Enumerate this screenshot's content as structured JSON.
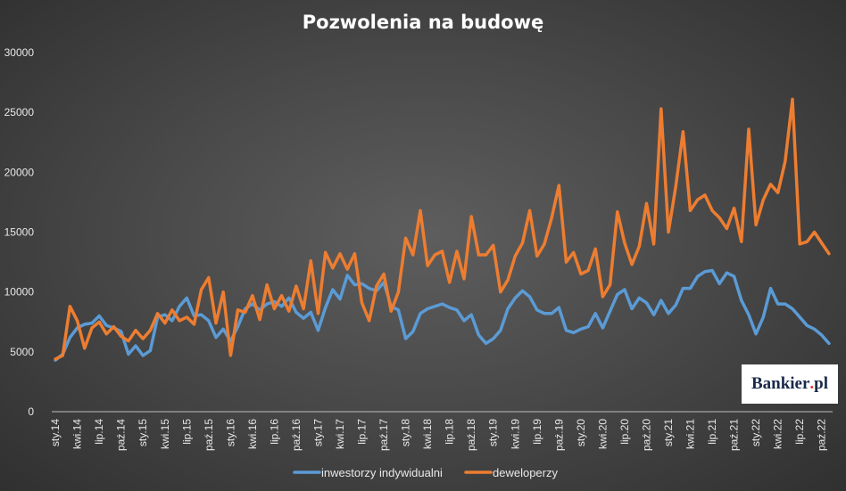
{
  "chart_data": {
    "type": "line",
    "title": "Pozwolenia na budowę",
    "xlabel": "",
    "ylabel": "",
    "ylim": [
      0,
      30000
    ],
    "yticks": [
      "0",
      "5000",
      "10000",
      "15000",
      "20000",
      "25000",
      "30000"
    ],
    "grid": false,
    "legend_position": "bottom",
    "x": [
      "sty.14",
      "lut.14",
      "mar.14",
      "kwi.14",
      "maj.14",
      "cze.14",
      "lip.14",
      "sie.14",
      "wrz.14",
      "paź.14",
      "lis.14",
      "gru.14",
      "sty.15",
      "lut.15",
      "mar.15",
      "kwi.15",
      "maj.15",
      "cze.15",
      "lip.15",
      "sie.15",
      "wrz.15",
      "paź.15",
      "lis.15",
      "gru.15",
      "sty.16",
      "lut.16",
      "mar.16",
      "kwi.16",
      "maj.16",
      "cze.16",
      "lip.16",
      "sie.16",
      "wrz.16",
      "paź.16",
      "lis.16",
      "gru.16",
      "sty.17",
      "lut.17",
      "mar.17",
      "kwi.17",
      "maj.17",
      "cze.17",
      "lip.17",
      "sie.17",
      "wrz.17",
      "paź.17",
      "lis.17",
      "gru.17",
      "sty.18",
      "lut.18",
      "mar.18",
      "kwi.18",
      "maj.18",
      "cze.18",
      "lip.18",
      "sie.18",
      "wrz.18",
      "paź.18",
      "lis.18",
      "gru.18",
      "sty.19",
      "lut.19",
      "mar.19",
      "kwi.19",
      "maj.19",
      "cze.19",
      "lip.19",
      "sie.19",
      "wrz.19",
      "paź.19",
      "lis.19",
      "gru.19",
      "sty.20",
      "lut.20",
      "mar.20",
      "kwi.20",
      "maj.20",
      "cze.20",
      "lip.20",
      "sie.20",
      "wrz.20",
      "paź.20",
      "lis.20",
      "gru.20",
      "sty.21",
      "lut.21",
      "mar.21",
      "kwi.21",
      "maj.21",
      "cze.21",
      "lip.21",
      "sie.21",
      "wrz.21",
      "paź.21",
      "lis.21",
      "gru.21",
      "sty.22",
      "lut.22",
      "mar.22",
      "kwi.22",
      "maj.22",
      "cze.22",
      "lip.22",
      "sie.22",
      "wrz.22",
      "paź.22",
      "lis.22"
    ],
    "x_tick_labels": [
      "sty.14",
      "kwi.14",
      "lip.14",
      "paź.14",
      "sty.15",
      "kwi.15",
      "lip.15",
      "paź.15",
      "sty.16",
      "kwi.16",
      "lip.16",
      "paź.16",
      "sty.17",
      "kwi.17",
      "lip.17",
      "paź.17",
      "sty.18",
      "kwi.18",
      "lip.18",
      "paź.18",
      "sty.19",
      "kwi.19",
      "lip.19",
      "paź.19",
      "sty.20",
      "kwi.20",
      "lip.20",
      "paź.20",
      "sty.21",
      "kwi.21",
      "lip.21",
      "paź.21",
      "sty.22",
      "kwi.22",
      "lip.22",
      "paź.22"
    ],
    "series": [
      {
        "name": "inwestorzy indywidualni",
        "color": "#5b9bd5",
        "values": [
          4300,
          4800,
          6200,
          7000,
          7300,
          7400,
          8000,
          7200,
          7000,
          6700,
          4800,
          5500,
          4700,
          5100,
          7900,
          8100,
          7600,
          8800,
          9500,
          8000,
          8100,
          7600,
          6200,
          6900,
          5900,
          7100,
          8600,
          9000,
          8500,
          9000,
          9200,
          8800,
          9500,
          8300,
          7800,
          8300,
          6800,
          8700,
          10200,
          9400,
          11400,
          10600,
          10700,
          10300,
          10100,
          10800,
          8800,
          8500,
          6100,
          6700,
          8200,
          8600,
          8800,
          9000,
          8700,
          8500,
          7600,
          8100,
          6400,
          5700,
          6100,
          6800,
          8600,
          9500,
          10100,
          9600,
          8500,
          8200,
          8200,
          8700,
          6800,
          6600,
          6900,
          7100,
          8200,
          7000,
          8400,
          9800,
          10200,
          8600,
          9500,
          9100,
          8100,
          9300,
          8200,
          8900,
          10300,
          10300,
          11300,
          11700,
          11800,
          10700,
          11600,
          11300,
          9300,
          8100,
          6500,
          7900,
          10300,
          9000,
          9000,
          8600,
          7900,
          7200,
          6900,
          6400,
          5700
        ]
      },
      {
        "name": "deweloperzy",
        "color": "#ed7d31",
        "values": [
          4400,
          4700,
          8800,
          7600,
          5300,
          7000,
          7500,
          6500,
          7100,
          6300,
          5900,
          6800,
          6100,
          6800,
          8200,
          7400,
          8500,
          7600,
          7900,
          7300,
          10200,
          11200,
          7400,
          10000,
          4700,
          8500,
          8300,
          9700,
          7700,
          10600,
          8600,
          9700,
          8400,
          10500,
          8600,
          12600,
          8200,
          13300,
          12000,
          13200,
          11900,
          13200,
          9100,
          7600,
          10500,
          11500,
          8400,
          10000,
          14500,
          13100,
          16800,
          12200,
          13100,
          13400,
          10800,
          13400,
          11100,
          16300,
          13100,
          13100,
          13900,
          10000,
          11000,
          13000,
          14100,
          16800,
          13000,
          14000,
          16200,
          18900,
          12500,
          13300,
          11500,
          11800,
          13600,
          9600,
          10600,
          16700,
          14100,
          12300,
          13800,
          17400,
          14000,
          25300,
          15000,
          18800,
          23400,
          16800,
          17700,
          18100,
          16800,
          16200,
          15300,
          17000,
          14200,
          23600,
          15600,
          17700,
          19000,
          18300,
          20900,
          26100,
          14000,
          14200,
          15000,
          14100,
          13200
        ]
      }
    ]
  },
  "logo_text": {
    "name": "Bankier",
    "dot": ".",
    "suffix": "pl"
  }
}
